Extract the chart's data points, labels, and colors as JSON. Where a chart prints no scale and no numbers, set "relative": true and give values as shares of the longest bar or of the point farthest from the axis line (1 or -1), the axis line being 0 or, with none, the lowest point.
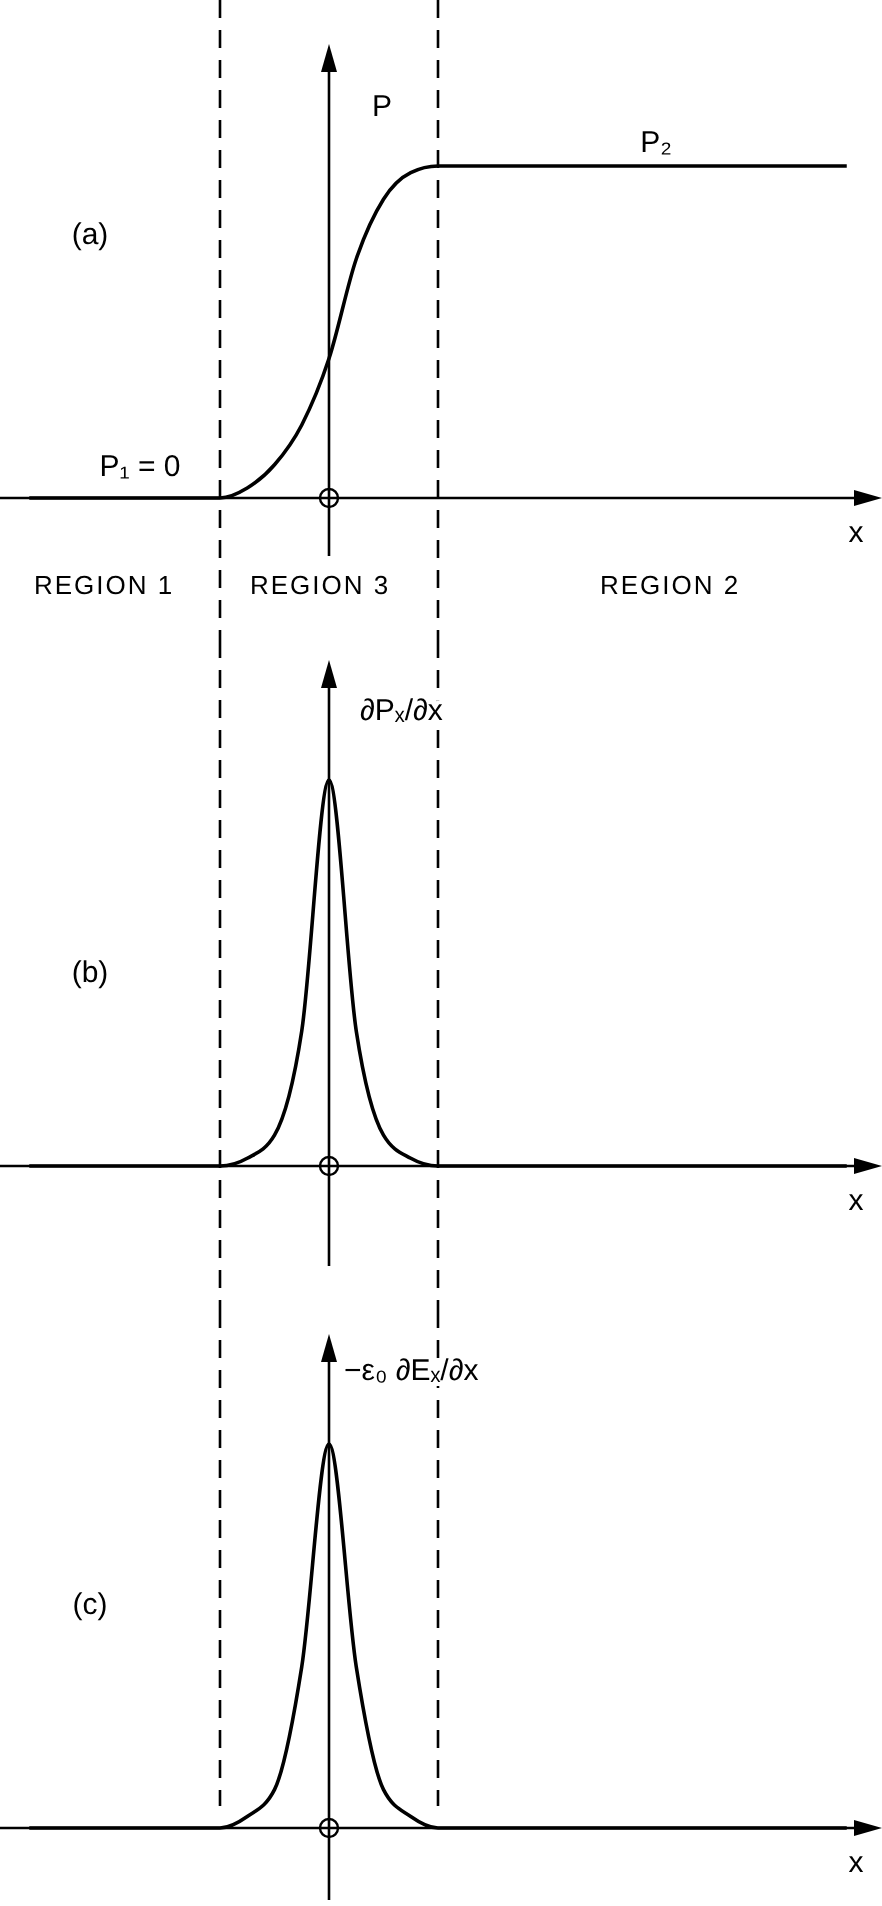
{
  "chart_data": [
    {
      "type": "line",
      "title": "(a)",
      "ylabel": "P",
      "xlabel": "x",
      "relative": true,
      "line_style": "solid",
      "categories": [
        null,
        null,
        null,
        null,
        null,
        null,
        null,
        null,
        null,
        null,
        null,
        null,
        null,
        null,
        null,
        null,
        null,
        null,
        null,
        null,
        null,
        null,
        null,
        null,
        null,
        null,
        null,
        null,
        null,
        null,
        null
      ],
      "series": [
        {
          "color": "#000000",
          "values": [
            0,
            0,
            0,
            0,
            0,
            0,
            0,
            0,
            0.03,
            0.1,
            0.22,
            0.42,
            0.72,
            0.9,
            0.98,
            1,
            1,
            1,
            1,
            1,
            1,
            1,
            1,
            1,
            1,
            1,
            1,
            1,
            1,
            1,
            1
          ]
        }
      ],
      "annotations": [
        "P₁ = 0",
        "P₂",
        "REGION 1",
        "REGION 3",
        "REGION 2"
      ]
    },
    {
      "type": "line",
      "title": "(b)",
      "ylabel": "∂Pₓ/∂x",
      "xlabel": "x",
      "relative": true,
      "line_style": "solid",
      "categories": [
        null,
        null,
        null,
        null,
        null,
        null,
        null,
        null,
        null,
        null,
        null,
        null,
        null,
        null,
        null,
        null,
        null,
        null,
        null,
        null,
        null,
        null,
        null,
        null,
        null,
        null,
        null,
        null,
        null,
        null,
        null
      ],
      "series": [
        {
          "color": "#000000",
          "values": [
            0,
            0,
            0,
            0,
            0,
            0,
            0,
            0,
            0.02,
            0.08,
            0.35,
            1,
            0.35,
            0.08,
            0.02,
            0,
            0,
            0,
            0,
            0,
            0,
            0,
            0,
            0,
            0,
            0,
            0,
            0,
            0,
            0,
            0
          ]
        }
      ]
    },
    {
      "type": "line",
      "title": "(c)",
      "ylabel": "−ε₀ ∂Eₓ/∂x",
      "xlabel": "x",
      "relative": true,
      "line_style": "solid",
      "categories": [
        null,
        null,
        null,
        null,
        null,
        null,
        null,
        null,
        null,
        null,
        null,
        null,
        null,
        null,
        null,
        null,
        null,
        null,
        null,
        null,
        null,
        null,
        null,
        null,
        null,
        null,
        null,
        null,
        null,
        null,
        null
      ],
      "series": [
        {
          "color": "#000000",
          "values": [
            0,
            0,
            0,
            0,
            0,
            0,
            0,
            0,
            0.03,
            0.1,
            0.42,
            1,
            0.42,
            0.1,
            0.03,
            0,
            0,
            0,
            0,
            0,
            0,
            0,
            0,
            0,
            0,
            0,
            0,
            0,
            0,
            0,
            0
          ]
        }
      ]
    }
  ]
}
